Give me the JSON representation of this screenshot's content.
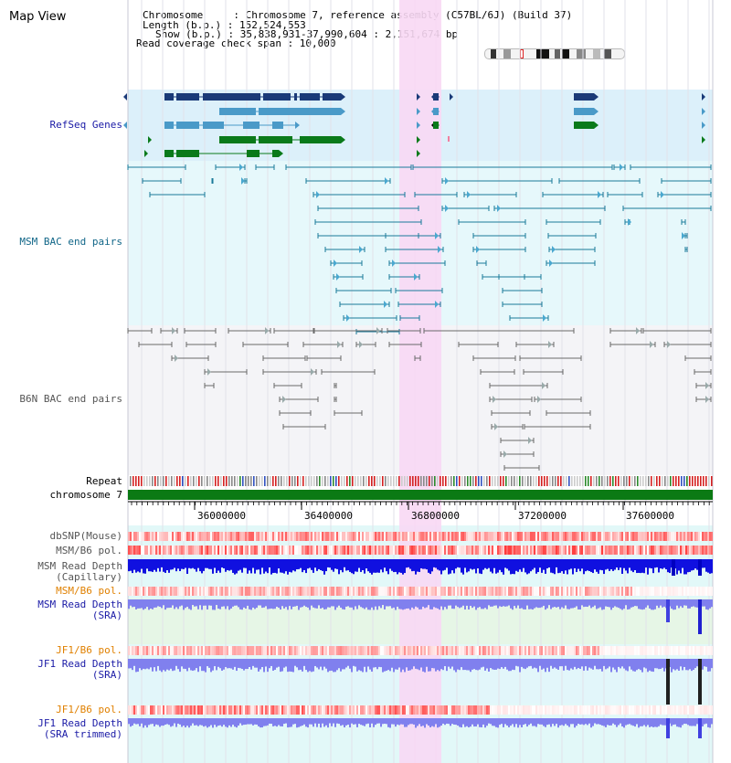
{
  "header": {
    "title": "Map View",
    "info": {
      "chromosome": "Chromosome     : Chromosome 7, reference assembly (C57BL/6J) (Build 37)",
      "length": "Length (b.p.) : 152,524,553",
      "show": "Show (b.p.) : 35,838,931-37,990,604 : 2,151,674 bp",
      "coverage": "Read coverage check span : 10,000"
    }
  },
  "tracks": {
    "refseq": {
      "label": "RefSeq Genes",
      "color": "#1a1aa6"
    },
    "msm_bac": {
      "label": "MSM BAC end pairs",
      "color": "#116688"
    },
    "b6n_bac": {
      "label": "B6N BAC end pairs",
      "color": "#555555"
    },
    "repeat": {
      "label": "Repeat",
      "color": "#000000"
    },
    "chromosome": {
      "label": "chromosome 7",
      "color": "#000000"
    },
    "dbsnp": {
      "label": "dbSNP(Mouse)",
      "color": "#555555"
    },
    "msm_b6_pol": {
      "label": "MSM/B6 pol.",
      "color": "#555555"
    },
    "msm_depth_cap": {
      "label": "MSM Read Depth\n(Capillary)",
      "color": "#555555"
    },
    "msm_b6_pol2": {
      "label": "MSM/B6 pol.",
      "color": "#e08000"
    },
    "msm_depth_sra": {
      "label": "MSM Read Depth\n(SRA)",
      "color": "#1a1aa6"
    },
    "jf1_b6_pol": {
      "label": "JF1/B6 pol.",
      "color": "#e08000"
    },
    "jf1_depth_sra": {
      "label": "JF1 Read Depth\n(SRA)",
      "color": "#1a1aa6"
    },
    "jf1_b6_pol2": {
      "label": "JF1/B6 pol.",
      "color": "#e08000"
    },
    "jf1_depth_trim": {
      "label": "JF1 Read Depth\n(SRA trimmed)",
      "color": "#1a1aa6"
    }
  },
  "axis": {
    "ticks": [
      "36000000",
      "36400000",
      "36800000",
      "37200000",
      "37600000"
    ]
  },
  "colors": {
    "highlight": "#f8d8f4",
    "gene_blue": "#1a3a78",
    "gene_light": "#4a9ac8",
    "gene_green": "#0a7a1a",
    "chromosome_green": "#0b7a14",
    "depth_dark": "#1010e0",
    "depth_light": "#8080ee"
  }
}
